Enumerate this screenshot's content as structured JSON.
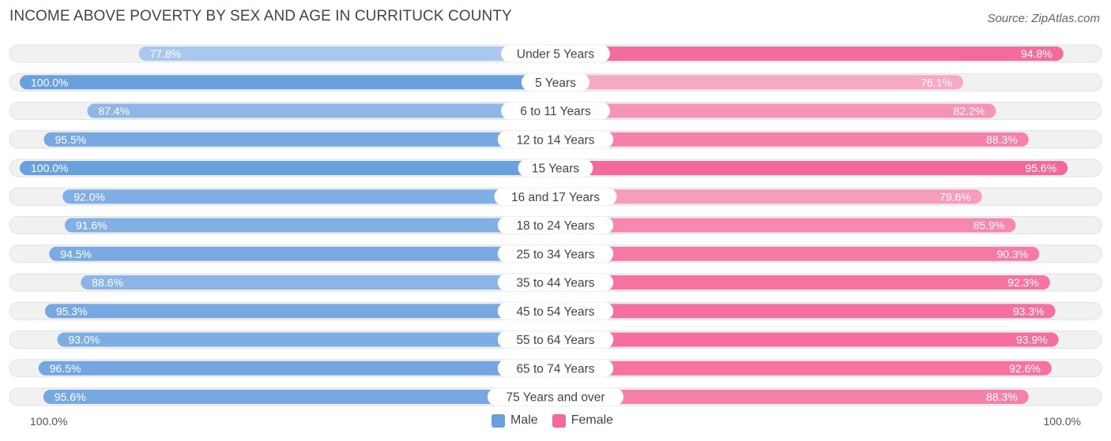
{
  "chart_data": {
    "type": "bar",
    "orientation": "horizontal-diverging",
    "title": "INCOME ABOVE POVERTY BY SEX AND AGE IN CURRITUCK COUNTY",
    "source": "Source: ZipAtlas.com",
    "categories": [
      "Under 5 Years",
      "5 Years",
      "6 to 11 Years",
      "12 to 14 Years",
      "15 Years",
      "16 and 17 Years",
      "18 to 24 Years",
      "25 to 34 Years",
      "35 to 44 Years",
      "45 to 54 Years",
      "55 to 64 Years",
      "65 to 74 Years",
      "75 Years and over"
    ],
    "series": [
      {
        "name": "Male",
        "values": [
          77.8,
          100.0,
          87.4,
          95.5,
          100.0,
          92.0,
          91.6,
          94.5,
          88.6,
          95.3,
          93.0,
          96.5,
          95.6
        ],
        "labels": [
          "77.8%",
          "100.0%",
          "87.4%",
          "95.5%",
          "100.0%",
          "92.0%",
          "91.6%",
          "94.5%",
          "88.6%",
          "95.3%",
          "93.0%",
          "96.5%",
          "95.6%"
        ]
      },
      {
        "name": "Female",
        "values": [
          94.8,
          76.1,
          82.2,
          88.3,
          95.6,
          79.6,
          85.9,
          90.3,
          92.3,
          93.3,
          93.9,
          92.6,
          88.3
        ],
        "labels": [
          "94.8%",
          "76.1%",
          "82.2%",
          "88.3%",
          "95.6%",
          "79.6%",
          "85.9%",
          "90.3%",
          "92.3%",
          "93.3%",
          "93.9%",
          "92.6%",
          "88.3%"
        ]
      }
    ],
    "xlim": [
      0,
      100
    ],
    "axis_left_label": "100.0%",
    "axis_right_label": "100.0%",
    "legend": [
      "Male",
      "Female"
    ],
    "legend_position": "bottom-center"
  },
  "colors": {
    "male_strong": "#6aa0dd",
    "male_light": "#a9c8ef",
    "female_strong": "#f4699a",
    "female_light": "#f7a8c4",
    "track": "#f1f1f1",
    "track_border": "#e2e2e2"
  }
}
